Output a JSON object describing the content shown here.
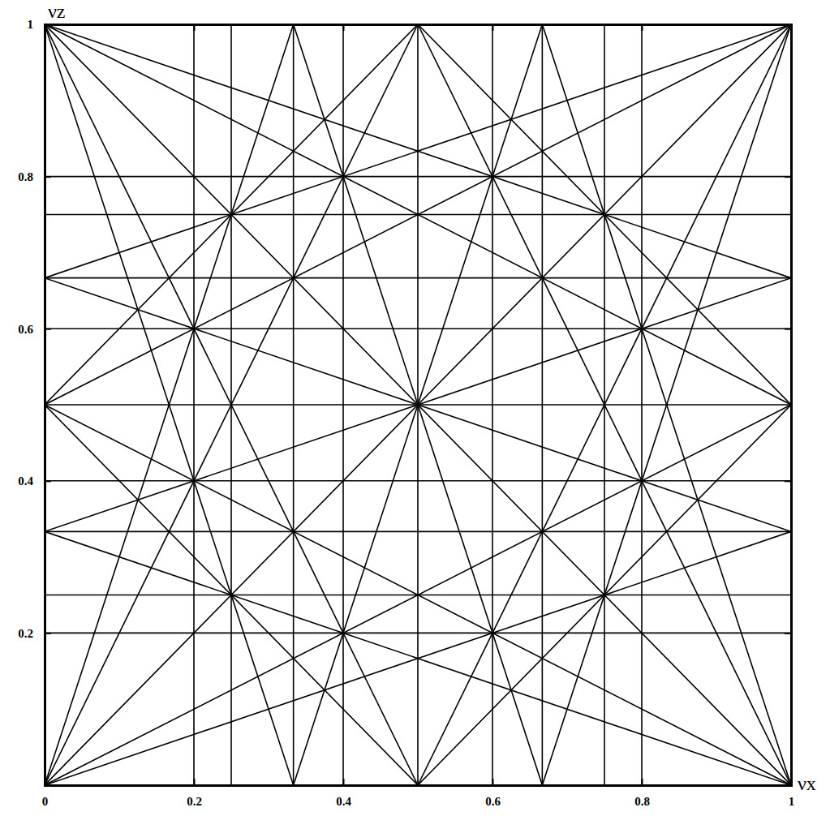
{
  "chart_data": {
    "type": "line",
    "x_label": "νx",
    "y_label": "νz",
    "color": "#000000",
    "xlim": [
      0,
      1
    ],
    "ylim": [
      0,
      1
    ],
    "xticks": [
      0,
      0.2,
      0.4,
      0.6,
      0.8,
      1
    ],
    "yticks": [
      0.2,
      0.4,
      0.6,
      0.8,
      1
    ],
    "series": [
      {
        "x": [
          0.5,
          0.5
        ],
        "values": [
          0,
          1
        ]
      },
      {
        "x": [
          0,
          1
        ],
        "values": [
          0.5,
          0.5
        ]
      },
      {
        "x": [
          0,
          1
        ],
        "values": [
          1,
          0
        ]
      },
      {
        "x": [
          0,
          1
        ],
        "values": [
          0,
          1
        ]
      },
      {
        "x": [
          0.3333,
          0.3333
        ],
        "values": [
          0,
          1
        ]
      },
      {
        "x": [
          0.6667,
          0.6667
        ],
        "values": [
          0,
          1
        ]
      },
      {
        "x": [
          0,
          1
        ],
        "values": [
          0.3333,
          0.3333
        ]
      },
      {
        "x": [
          0,
          1
        ],
        "values": [
          0.6667,
          0.6667
        ]
      },
      {
        "x": [
          0,
          0.5
        ],
        "values": [
          1,
          0
        ]
      },
      {
        "x": [
          0.5,
          1
        ],
        "values": [
          1,
          0
        ]
      },
      {
        "x": [
          0,
          1
        ],
        "values": [
          0.5,
          0
        ]
      },
      {
        "x": [
          0,
          1
        ],
        "values": [
          1,
          0.5
        ]
      },
      {
        "x": [
          0,
          0.5
        ],
        "values": [
          0,
          1
        ]
      },
      {
        "x": [
          0.5,
          1
        ],
        "values": [
          0,
          1
        ]
      },
      {
        "x": [
          0,
          1
        ],
        "values": [
          0,
          0.5
        ]
      },
      {
        "x": [
          0,
          1
        ],
        "values": [
          0.5,
          1
        ]
      },
      {
        "x": [
          0.25,
          0.25
        ],
        "values": [
          0,
          1
        ]
      },
      {
        "x": [
          0.75,
          0.75
        ],
        "values": [
          0,
          1
        ]
      },
      {
        "x": [
          0,
          1
        ],
        "values": [
          0.25,
          0.25
        ]
      },
      {
        "x": [
          0,
          1
        ],
        "values": [
          0.75,
          0.75
        ]
      },
      {
        "x": [
          0,
          0.3333
        ],
        "values": [
          1,
          0
        ]
      },
      {
        "x": [
          0.3333,
          0.6667
        ],
        "values": [
          1,
          0
        ]
      },
      {
        "x": [
          0.6667,
          1
        ],
        "values": [
          1,
          0
        ]
      },
      {
        "x": [
          0,
          0.3333
        ],
        "values": [
          0,
          1
        ]
      },
      {
        "x": [
          0.3333,
          0.6667
        ],
        "values": [
          0,
          1
        ]
      },
      {
        "x": [
          0.6667,
          1
        ],
        "values": [
          0,
          1
        ]
      },
      {
        "x": [
          0,
          1
        ],
        "values": [
          0.3333,
          0
        ]
      },
      {
        "x": [
          0,
          1
        ],
        "values": [
          0.6667,
          0.3333
        ]
      },
      {
        "x": [
          0,
          1
        ],
        "values": [
          1,
          0.6667
        ]
      },
      {
        "x": [
          0,
          1
        ],
        "values": [
          0,
          0.3333
        ]
      },
      {
        "x": [
          0,
          1
        ],
        "values": [
          0.3333,
          0.6667
        ]
      },
      {
        "x": [
          0,
          1
        ],
        "values": [
          0.6667,
          1
        ]
      },
      {
        "x": [
          0,
          0.5
        ],
        "values": [
          0.5,
          0
        ]
      },
      {
        "x": [
          0.5,
          1
        ],
        "values": [
          1,
          0.5
        ]
      },
      {
        "x": [
          0.5,
          1
        ],
        "values": [
          0,
          0.5
        ]
      },
      {
        "x": [
          0,
          0.5
        ],
        "values": [
          0.5,
          1
        ]
      },
      {
        "x": [
          0.2,
          0.2
        ],
        "values": [
          0,
          1
        ]
      },
      {
        "x": [
          0.4,
          0.4
        ],
        "values": [
          0,
          1
        ]
      },
      {
        "x": [
          0.6,
          0.6
        ],
        "values": [
          0,
          1
        ]
      },
      {
        "x": [
          0.8,
          0.8
        ],
        "values": [
          0,
          1
        ]
      },
      {
        "x": [
          0,
          1
        ],
        "values": [
          0.2,
          0.2
        ]
      },
      {
        "x": [
          0,
          1
        ],
        "values": [
          0.4,
          0.4
        ]
      },
      {
        "x": [
          0,
          1
        ],
        "values": [
          0.6,
          0.6
        ]
      },
      {
        "x": [
          0,
          1
        ],
        "values": [
          0.8,
          0.8
        ]
      }
    ]
  }
}
